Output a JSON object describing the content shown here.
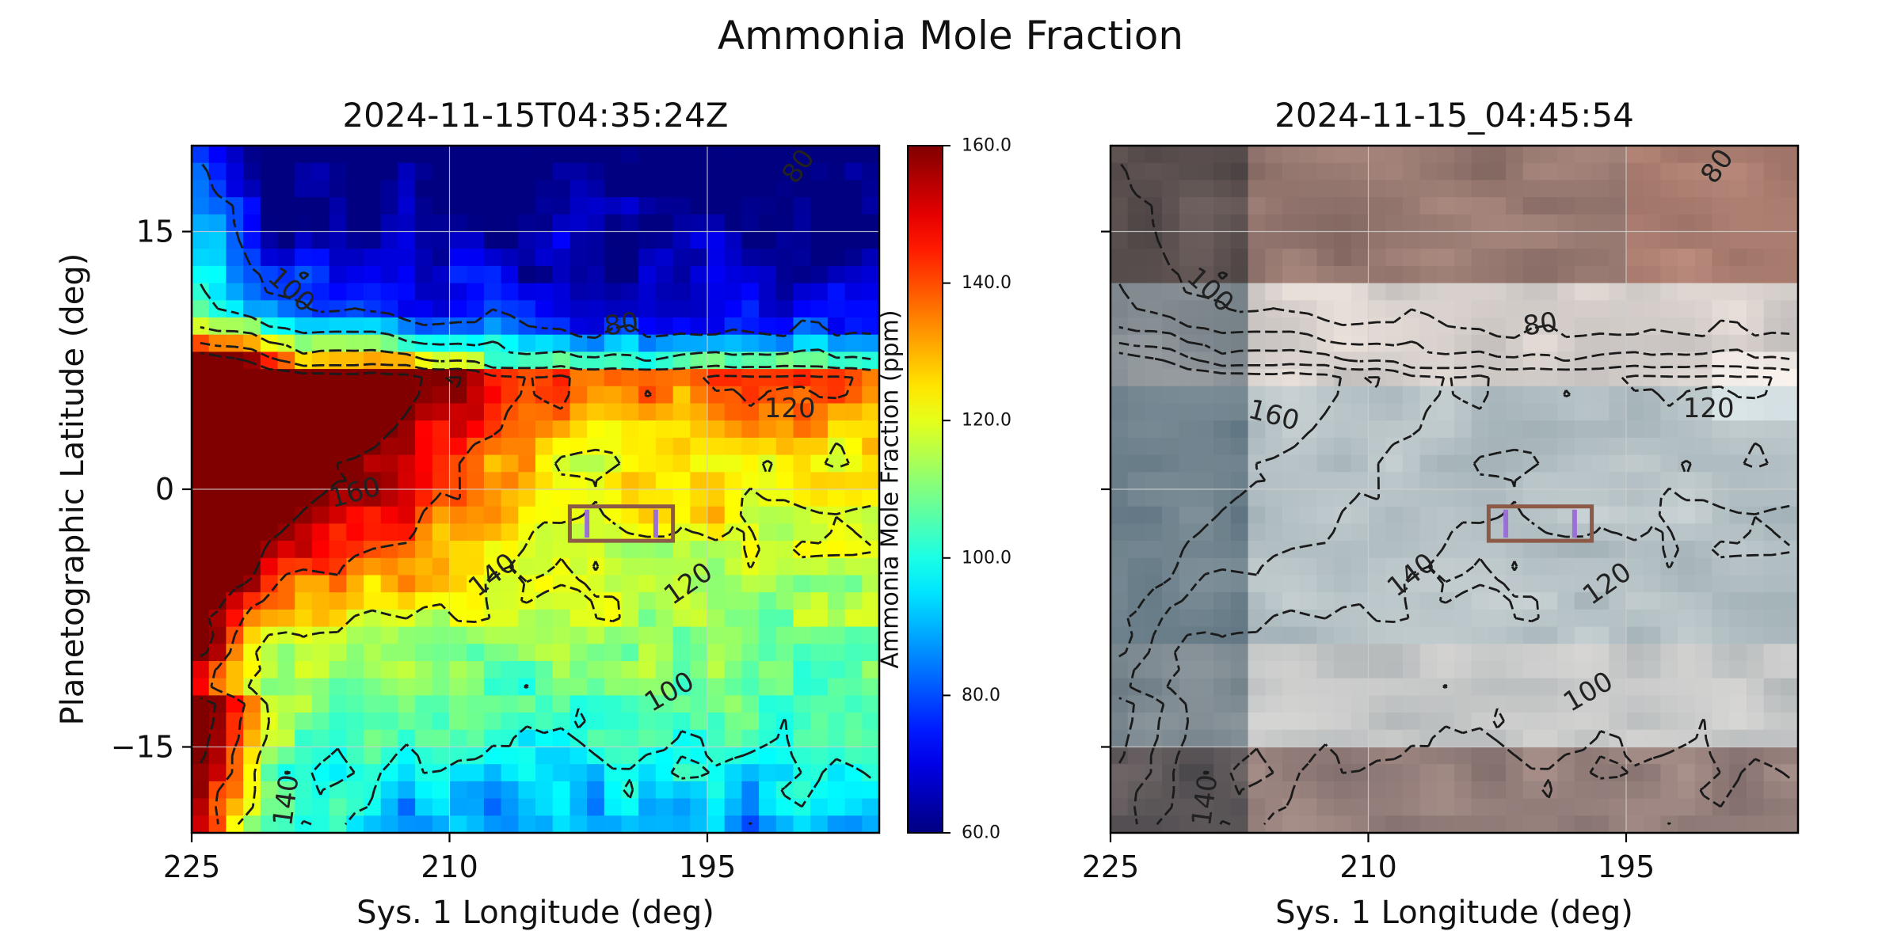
{
  "figure": {
    "title": "Ammonia Mole Fraction"
  },
  "chart_data": [
    {
      "type": "heatmap",
      "panel": "left",
      "title": "2024-11-15T04:35:24Z",
      "xlabel": "Sys. 1 Longitude (deg)",
      "ylabel": "Planetographic Latitude (deg)",
      "xlim": [
        225,
        185
      ],
      "ylim": [
        -20,
        20
      ],
      "x_ticks": [
        225,
        210,
        195
      ],
      "x_tick_labels": [
        "225",
        "210",
        "195"
      ],
      "y_ticks": [
        15,
        0,
        -15
      ],
      "y_tick_labels": [
        "15",
        "0",
        "−15"
      ],
      "grid": true,
      "colormap": "jet",
      "colorbar": {
        "label": "Ammonia Mole Fraction (ppm)",
        "range": [
          60,
          160
        ],
        "ticks": [
          60,
          80,
          100,
          120,
          140,
          160
        ],
        "tick_labels": [
          "60.0",
          "80.0",
          "100.0",
          "120.0",
          "140.0",
          "160.0"
        ]
      },
      "contour_levels": [
        80,
        100,
        120,
        140,
        160
      ],
      "contour_labels": [
        {
          "text": "80",
          "lon": 200,
          "lat": 9.6,
          "rot": -8
        },
        {
          "text": "100",
          "lon": 219.2,
          "lat": 11.6,
          "rot": 42
        },
        {
          "text": "120",
          "lon": 190.2,
          "lat": 4.7,
          "rot": 0
        },
        {
          "text": "160",
          "lon": 215.5,
          "lat": -0.2,
          "rot": -15
        },
        {
          "text": "140",
          "lon": 207.5,
          "lat": -5,
          "rot": -38
        },
        {
          "text": "120",
          "lon": 196.1,
          "lat": -5.5,
          "rot": -35
        },
        {
          "text": "100",
          "lon": 197.2,
          "lat": -11.8,
          "rot": -30
        },
        {
          "text": "140",
          "lon": 219.5,
          "lat": -18.1,
          "rot": -82
        },
        {
          "text": "80",
          "lon": 189.7,
          "lat": 18.8,
          "rot": -55
        }
      ],
      "box": {
        "lon": [
          203,
          197
        ],
        "lat": [
          -3,
          -1
        ]
      },
      "markers": {
        "lon": [
          202,
          198
        ]
      }
    },
    {
      "type": "heatmap",
      "panel": "right",
      "title": "2024-11-15_04:45:54",
      "xlabel": "Sys. 1 Longitude (deg)",
      "xlim": [
        225,
        185
      ],
      "ylim": [
        -20,
        20
      ],
      "x_ticks": [
        225,
        210,
        195
      ],
      "x_tick_labels": [
        "225",
        "210",
        "195"
      ],
      "y_ticks": [
        15,
        0,
        -15
      ],
      "grid": true,
      "background": "true-color image",
      "contour_levels": [
        80,
        100,
        120,
        140,
        160
      ],
      "contour_labels": [
        {
          "text": "80",
          "lon": 200,
          "lat": 9.6,
          "rot": -8
        },
        {
          "text": "100",
          "lon": 219.2,
          "lat": 11.6,
          "rot": 42
        },
        {
          "text": "120",
          "lon": 190.2,
          "lat": 4.7,
          "rot": 0
        },
        {
          "text": "160",
          "lon": 215.5,
          "lat": 4.3,
          "rot": 15
        },
        {
          "text": "140",
          "lon": 207.5,
          "lat": -5,
          "rot": -38
        },
        {
          "text": "120",
          "lon": 196.1,
          "lat": -5.5,
          "rot": -35
        },
        {
          "text": "100",
          "lon": 197.2,
          "lat": -11.8,
          "rot": -30
        },
        {
          "text": "140",
          "lon": 219.5,
          "lat": -18.1,
          "rot": -82
        },
        {
          "text": "80",
          "lon": 189.7,
          "lat": 18.8,
          "rot": -55
        }
      ],
      "box": {
        "lon": [
          203,
          197
        ],
        "lat": [
          -3,
          -1
        ]
      },
      "markers": {
        "lon": [
          202,
          198
        ]
      }
    }
  ],
  "colors": {
    "box": "#8c5a46",
    "markers": "#9b6fd6",
    "contour": "#1a1a1a",
    "grid": "#cfcfcf"
  }
}
